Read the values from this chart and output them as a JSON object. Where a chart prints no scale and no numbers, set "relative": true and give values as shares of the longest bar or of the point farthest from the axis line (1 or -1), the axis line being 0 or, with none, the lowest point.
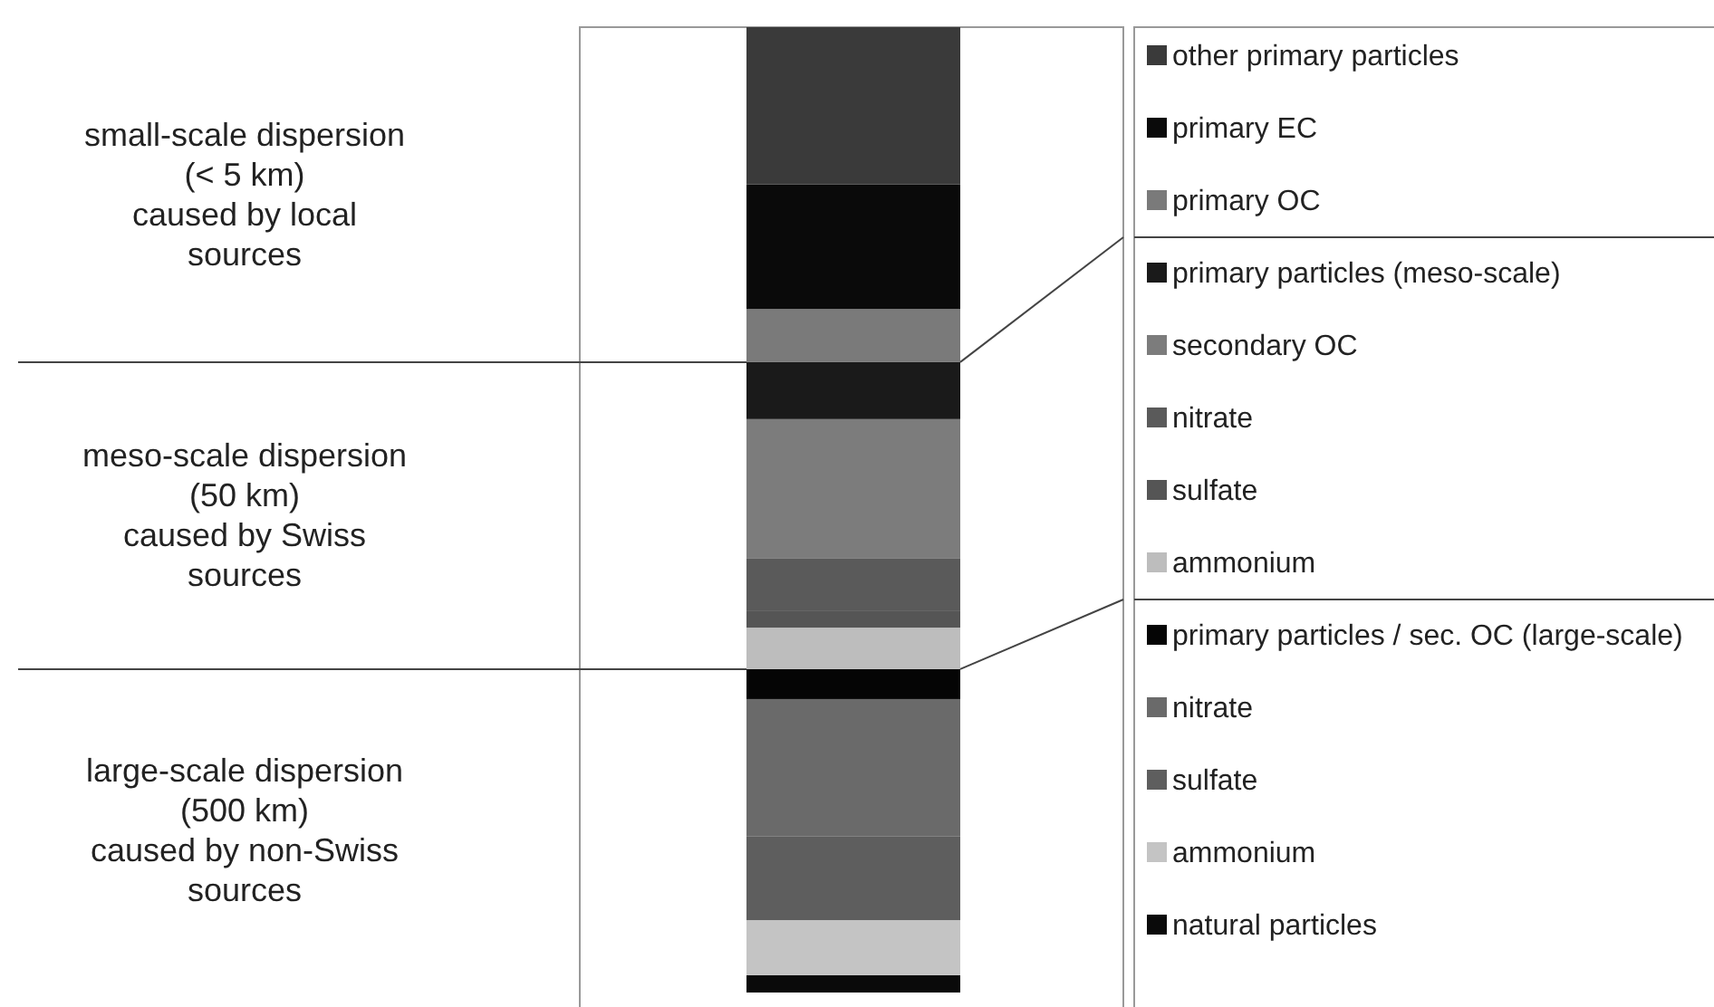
{
  "chart_data": {
    "type": "bar",
    "stacked": true,
    "relative": true,
    "legend": "right",
    "categories": [
      null
    ],
    "annotations": [
      "large-scale dispersion\n(500 km)\ncaused by non-Swiss\nsources",
      "meso-scale dispersion\n(50 km)\ncaused by Swiss\nsources",
      "small-scale dispersion\n(< 5 km)\ncaused by local\nsources"
    ],
    "series": [
      {
        "name": "natural particles",
        "color": "#0a0a0a",
        "values": [
          0.018
        ]
      },
      {
        "name": "ammonium",
        "color": "#c4c4c4",
        "values": [
          0.057
        ]
      },
      {
        "name": "sulfate",
        "color": "#5e5e5e",
        "values": [
          0.087
        ]
      },
      {
        "name": "nitrate",
        "color": "#6a6a6a",
        "values": [
          0.142
        ]
      },
      {
        "name": "primary particles / sec. OC (large-scale)",
        "color": "#050505",
        "values": [
          0.031
        ]
      },
      {
        "name": "ammonium",
        "color": "#bdbdbd",
        "values": [
          0.043
        ]
      },
      {
        "name": "sulfate",
        "color": "#555555",
        "values": [
          0.017
        ]
      },
      {
        "name": "nitrate",
        "color": "#5a5a5a",
        "values": [
          0.055
        ]
      },
      {
        "name": "secondary OC",
        "color": "#7c7c7c",
        "values": [
          0.144
        ]
      },
      {
        "name": "primary particles (meso-scale)",
        "color": "#1a1a1a",
        "values": [
          0.059
        ]
      },
      {
        "name": "primary OC",
        "color": "#7a7a7a",
        "values": [
          0.055
        ]
      },
      {
        "name": "primary EC",
        "color": "#0a0a0a",
        "values": [
          0.129
        ]
      },
      {
        "name": "other primary particles",
        "color": "#3a3a3a",
        "values": [
          0.163
        ]
      }
    ]
  }
}
